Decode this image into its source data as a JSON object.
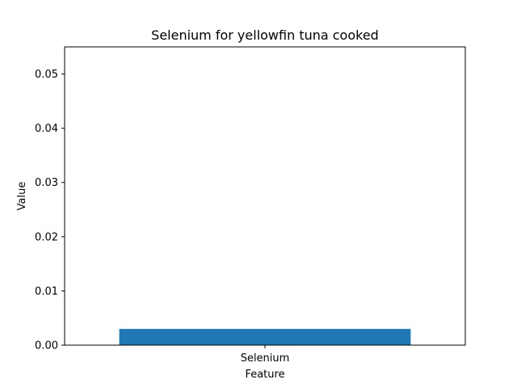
{
  "chart_data": {
    "type": "bar",
    "title": "Selenium for yellowfin tuna cooked",
    "xlabel": "Feature",
    "ylabel": "Value",
    "categories": [
      "Selenium"
    ],
    "values": [
      0.003
    ],
    "ylim": [
      0,
      0.055
    ],
    "yticks": [
      0.0,
      0.01,
      0.02,
      0.03,
      0.04,
      0.05
    ],
    "ytick_labels": [
      "0.00",
      "0.01",
      "0.02",
      "0.03",
      "0.04",
      "0.05"
    ],
    "bar_color": "#1f77b4",
    "grid": false,
    "legend": false
  }
}
